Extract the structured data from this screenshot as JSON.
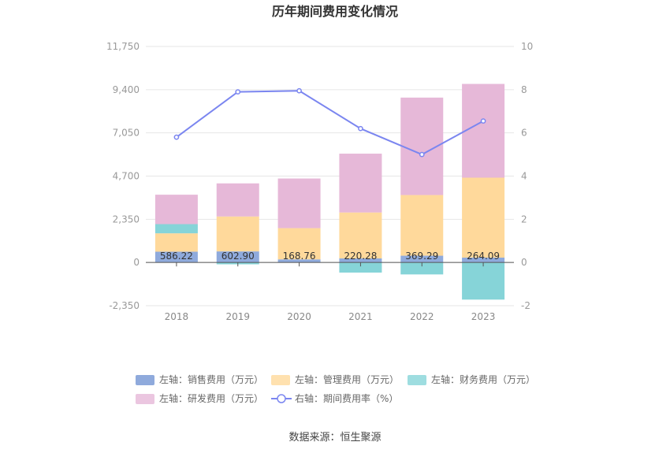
{
  "chart_data": {
    "type": "bar",
    "title": "历年期间费用变化情况",
    "categories": [
      "2018",
      "2019",
      "2020",
      "2021",
      "2022",
      "2023"
    ],
    "left_axis": {
      "ticks": [
        "11,750",
        "9,400",
        "7,050",
        "4,700",
        "2,350",
        "0",
        "-2,350"
      ],
      "ylim": [
        -2350,
        11750
      ]
    },
    "right_axis": {
      "ticks": [
        "10",
        "8",
        "6",
        "4",
        "2",
        "0",
        "-2"
      ],
      "ylim": [
        -2,
        10
      ]
    },
    "series": [
      {
        "name": "左轴：销售费用（万元）",
        "kind": "bar",
        "axis": "left",
        "color": "#8faadc",
        "values": [
          586.22,
          602.9,
          168.76,
          220.28,
          369.29,
          264.09
        ],
        "labels": [
          "586.22",
          "602.90",
          "168.76",
          "220.28",
          "369.29",
          "264.09"
        ]
      },
      {
        "name": "左轴：管理费用（万元）",
        "kind": "bar",
        "axis": "left",
        "color": "#ffd99b",
        "values": [
          1000,
          1900,
          1700,
          2500,
          3300,
          4350
        ]
      },
      {
        "name": "左轴：财务费用（万元）",
        "kind": "bar",
        "axis": "left",
        "color": "#86d4d8",
        "values": [
          500,
          -100,
          0,
          -550,
          -650,
          -2020
        ]
      },
      {
        "name": "左轴：研发费用（万元）",
        "kind": "bar",
        "axis": "left",
        "color": "#e6b8d8",
        "values": [
          1600,
          1800,
          2700,
          3200,
          5300,
          5100
        ]
      },
      {
        "name": "右轴：期间费用率（%）",
        "kind": "line",
        "axis": "right",
        "color": "#7b86f0",
        "values": [
          5.8,
          7.9,
          7.95,
          6.2,
          5.0,
          6.55
        ]
      }
    ],
    "legend_position": "bottom",
    "grid": true
  },
  "source": "数据来源：恒生聚源"
}
